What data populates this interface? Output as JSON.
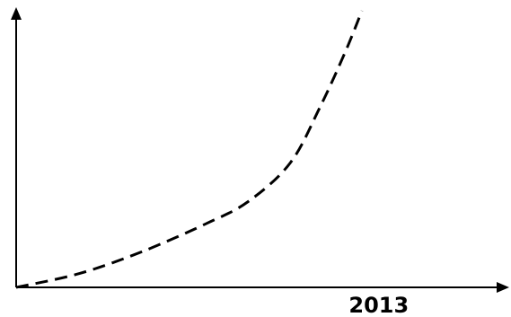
{
  "chart_data": {
    "type": "line",
    "title": "",
    "xlabel": "",
    "ylabel": "",
    "x_tick_labels": [
      {
        "label": "2013",
        "x": 0.86
      }
    ],
    "series": [
      {
        "style": "dashed",
        "color": "#000000",
        "points": [
          {
            "x": 0.0,
            "y": 0.0
          },
          {
            "x": 0.15,
            "y": 0.05
          },
          {
            "x": 0.3,
            "y": 0.13
          },
          {
            "x": 0.45,
            "y": 0.23
          },
          {
            "x": 0.55,
            "y": 0.31
          },
          {
            "x": 0.65,
            "y": 0.45
          },
          {
            "x": 0.72,
            "y": 0.65
          },
          {
            "x": 0.78,
            "y": 0.85
          },
          {
            "x": 0.82,
            "y": 1.0
          }
        ]
      }
    ],
    "xlim": [
      0,
      1.15
    ],
    "ylim": [
      0,
      1.0
    ],
    "grid": false,
    "legend": "none"
  }
}
